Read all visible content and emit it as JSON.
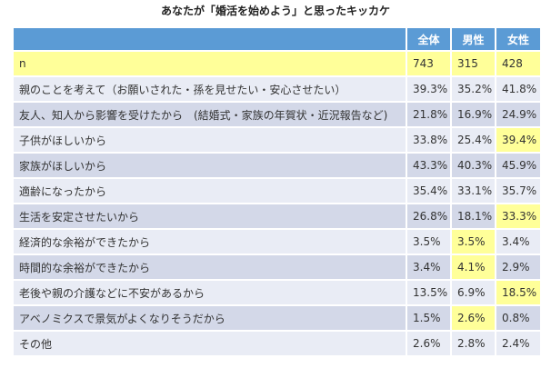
{
  "chart_data": {
    "type": "table",
    "title": "あなたが「婚活を始めよう」と思ったキッカケ",
    "columns": [
      "全体",
      "男性",
      "女性"
    ],
    "rows": [
      {
        "label": "n",
        "values": [
          "743",
          "315",
          "428"
        ],
        "highlight": [
          false,
          false,
          false
        ],
        "row_style": "n"
      },
      {
        "label": "親のことを考えて（お願いされた・孫を見せたい・安心させたい）",
        "values": [
          "39.3%",
          "35.2%",
          "41.8%"
        ],
        "highlight": [
          false,
          false,
          false
        ]
      },
      {
        "label": "友人、知人から影響を受けたから　(結婚式・家族の年賀状・近況報告など)",
        "values": [
          "21.8%",
          "16.9%",
          "24.9%"
        ],
        "highlight": [
          false,
          false,
          false
        ]
      },
      {
        "label": "子供がほしいから",
        "values": [
          "33.8%",
          "25.4%",
          "39.4%"
        ],
        "highlight": [
          false,
          false,
          true
        ]
      },
      {
        "label": "家族がほしいから",
        "values": [
          "43.3%",
          "40.3%",
          "45.9%"
        ],
        "highlight": [
          false,
          false,
          false
        ]
      },
      {
        "label": "適齢になったから",
        "values": [
          "35.4%",
          "33.1%",
          "35.7%"
        ],
        "highlight": [
          false,
          false,
          false
        ]
      },
      {
        "label": "生活を安定させたいから",
        "values": [
          "26.8%",
          "18.1%",
          "33.3%"
        ],
        "highlight": [
          false,
          false,
          true
        ]
      },
      {
        "label": "経済的な余裕ができたから",
        "values": [
          "3.5%",
          "3.5%",
          "3.4%"
        ],
        "highlight": [
          false,
          true,
          false
        ]
      },
      {
        "label": "時間的な余裕ができたから",
        "values": [
          "3.4%",
          "4.1%",
          "2.9%"
        ],
        "highlight": [
          false,
          true,
          false
        ]
      },
      {
        "label": "老後や親の介護などに不安があるから",
        "values": [
          "13.5%",
          "6.9%",
          "18.5%"
        ],
        "highlight": [
          false,
          false,
          true
        ]
      },
      {
        "label": "アベノミクスで景気がよくなりそうだから",
        "values": [
          "1.5%",
          "2.6%",
          "0.8%"
        ],
        "highlight": [
          false,
          true,
          false
        ]
      },
      {
        "label": "その他",
        "values": [
          "2.6%",
          "2.8%",
          "2.4%"
        ],
        "highlight": [
          false,
          false,
          false
        ]
      }
    ],
    "colors": {
      "header": "#5b9bd5",
      "row_light": "#e9ecf5",
      "row_dark": "#d3d8e8",
      "highlight": "#ffff99"
    }
  }
}
